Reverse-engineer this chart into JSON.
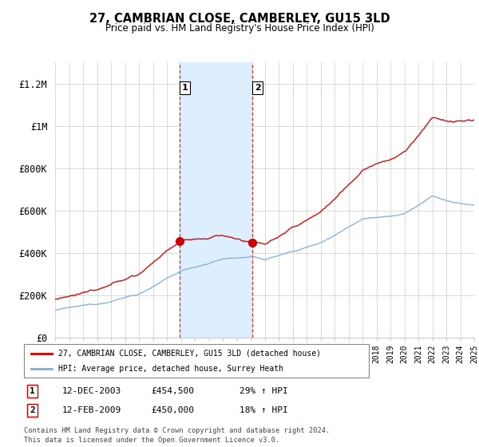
{
  "title": "27, CAMBRIAN CLOSE, CAMBERLEY, GU15 3LD",
  "subtitle": "Price paid vs. HM Land Registry's House Price Index (HPI)",
  "ylim": [
    0,
    1300000
  ],
  "yticks": [
    0,
    200000,
    400000,
    600000,
    800000,
    1000000,
    1200000
  ],
  "ytick_labels": [
    "£0",
    "£200K",
    "£400K",
    "£600K",
    "£800K",
    "£1M",
    "£1.2M"
  ],
  "year_start": 1995,
  "year_end": 2025,
  "sale1_year": 2003.92,
  "sale1_price": 454500,
  "sale1_label": "1",
  "sale1_date": "12-DEC-2003",
  "sale1_pct": "29%",
  "sale2_year": 2009.12,
  "sale2_price": 450000,
  "sale2_label": "2",
  "sale2_date": "12-FEB-2009",
  "sale2_pct": "18%",
  "red_color": "#cc0000",
  "blue_color": "#7bafd4",
  "highlight_fill": "#ddeeff",
  "legend_label1": "27, CAMBRIAN CLOSE, CAMBERLEY, GU15 3LD (detached house)",
  "legend_label2": "HPI: Average price, detached house, Surrey Heath",
  "footer": "Contains HM Land Registry data © Crown copyright and database right 2024.\nThis data is licensed under the Open Government Licence v3.0."
}
